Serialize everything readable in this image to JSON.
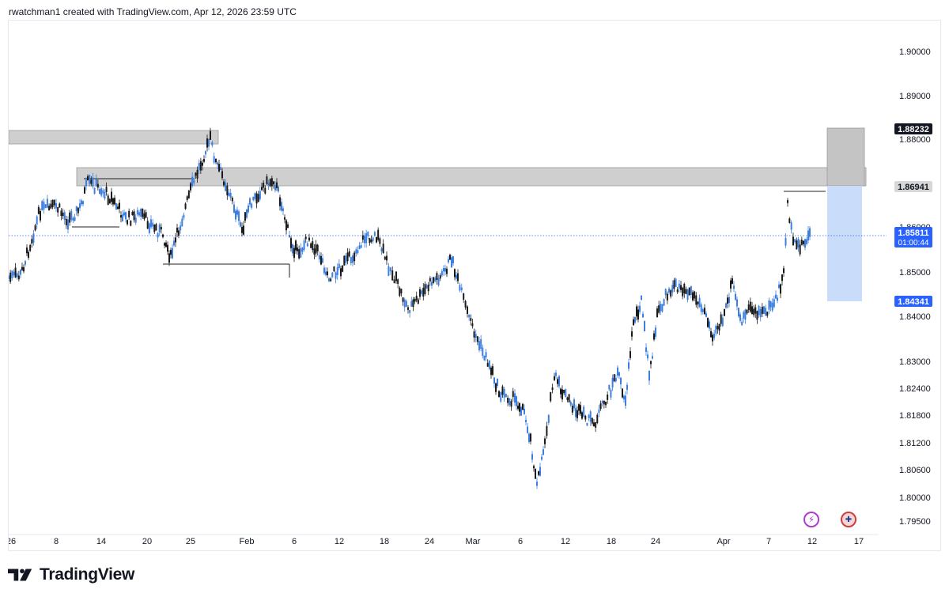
{
  "header": {
    "text": "rwatchman1 created with TradingView.com, Apr 12, 2026 23:59 UTC"
  },
  "footer": {
    "brand": "TradingView"
  },
  "icons": {
    "flash": "lightning-icon",
    "flag": "uk-flag-icon"
  },
  "colors": {
    "up": "#3d7fe0",
    "down": "#1a1a1a",
    "zone_fill": "#cfcfcf",
    "target_fill": "#c9ddfb",
    "accent": "#2962ff"
  },
  "chart_data": {
    "type": "candlestick",
    "y_axis": {
      "ticks": [
        "1.90000",
        "1.89000",
        "1.88000",
        "1.86000",
        "1.85000",
        "1.84000",
        "1.83000",
        "1.82400",
        "1.81800",
        "1.81200",
        "1.80600",
        "1.80000",
        "1.79500"
      ]
    },
    "x_axis": {
      "ticks": [
        "26",
        "8",
        "14",
        "20",
        "25",
        "Feb",
        "6",
        "12",
        "18",
        "24",
        "Mar",
        "6",
        "12",
        "18",
        "24",
        "Apr",
        "7",
        "12",
        "17"
      ]
    },
    "price_labels": [
      {
        "name": "upper-target",
        "value": "1.88232",
        "style": "dark"
      },
      {
        "name": "resistance",
        "value": "1.86941",
        "style": "grey"
      },
      {
        "name": "current-price",
        "value": "1.85811",
        "sub": "01:00:44",
        "style": "blue"
      },
      {
        "name": "stop-level",
        "value": "1.84341",
        "style": "blue"
      }
    ],
    "current_price": 1.85811,
    "zones": [
      {
        "name": "upper-supply",
        "top": 1.8825,
        "bottom": 1.881
      },
      {
        "name": "resistance-zone",
        "top": 1.872,
        "bottom": 1.8697
      }
    ]
  }
}
